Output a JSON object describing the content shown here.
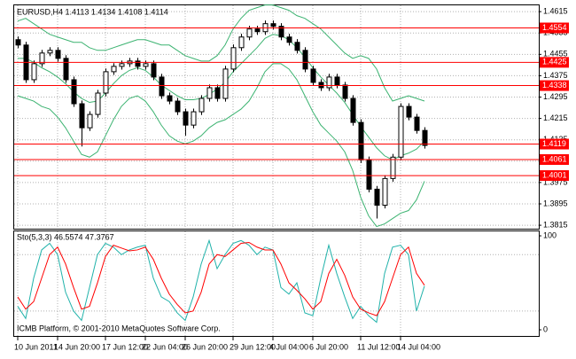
{
  "chart_data": [
    {
      "type": "candlestick",
      "title": "EURUSD,H4  1.4113 1.4134 1.4108 1.4114",
      "categories": [
        "10 Jun 2011",
        null,
        null,
        null,
        null,
        "14 Jun 20:00",
        null,
        null,
        null,
        null,
        null,
        "17 Jun 12:00",
        null,
        null,
        null,
        null,
        "22 Jun 04:00",
        null,
        null,
        null,
        null,
        "26 Jun 20:00",
        null,
        null,
        null,
        null,
        null,
        "29 Jun 12:00",
        null,
        null,
        null,
        null,
        "4 Jul 04:00",
        null,
        null,
        null,
        null,
        "6 Jul 20:00",
        null,
        null,
        null,
        null,
        null,
        "11 Jul 12:00",
        null,
        null,
        null,
        null,
        "14 Jul 04:00",
        null,
        null,
        null
      ],
      "open": [
        1.451,
        1.449,
        1.436,
        1.442,
        1.446,
        1.447,
        1.444,
        1.436,
        1.427,
        1.418,
        1.423,
        1.431,
        1.439,
        1.441,
        1.442,
        1.443,
        1.441,
        1.442,
        1.437,
        1.43,
        1.428,
        1.424,
        1.419,
        1.424,
        1.429,
        1.433,
        1.429,
        1.44,
        1.448,
        1.452,
        1.455,
        1.454,
        1.457,
        1.456,
        1.452,
        1.45,
        1.447,
        1.44,
        1.435,
        1.433,
        1.437,
        1.434,
        1.429,
        1.42,
        1.406,
        1.395,
        1.389,
        1.399,
        1.407,
        1.426,
        1.422,
        1.417
      ],
      "high": [
        1.4522,
        1.4502,
        1.4432,
        1.4472,
        1.4482,
        1.4482,
        1.4452,
        1.4372,
        1.4282,
        1.4242,
        1.4322,
        1.4402,
        1.4422,
        1.4432,
        1.4442,
        1.4442,
        1.4432,
        1.4432,
        1.4382,
        1.4312,
        1.4292,
        1.4252,
        1.4252,
        1.4302,
        1.4342,
        1.4342,
        1.4412,
        1.4492,
        1.4532,
        1.4562,
        1.4562,
        1.4582,
        1.4582,
        1.4572,
        1.4532,
        1.4512,
        1.4482,
        1.4412,
        1.4362,
        1.4382,
        1.4382,
        1.4352,
        1.4302,
        1.4212,
        1.4072,
        1.3962,
        1.4002,
        1.4082,
        1.4272,
        1.4272,
        1.4232,
        1.4182
      ],
      "low": [
        1.4478,
        1.4348,
        1.4348,
        1.4408,
        1.4448,
        1.4428,
        1.4348,
        1.4258,
        1.411,
        1.4168,
        1.4218,
        1.4298,
        1.4378,
        1.4398,
        1.4408,
        1.4398,
        1.4398,
        1.4358,
        1.4288,
        1.4268,
        1.4228,
        1.415,
        1.4178,
        1.4228,
        1.4278,
        1.4278,
        1.4278,
        1.4388,
        1.4468,
        1.4508,
        1.4528,
        1.4528,
        1.4548,
        1.4508,
        1.4488,
        1.4458,
        1.4388,
        1.4338,
        1.4318,
        1.4318,
        1.4328,
        1.4278,
        1.4188,
        1.4048,
        1.3938,
        1.384,
        1.3878,
        1.3978,
        1.4058,
        1.4208,
        1.4158,
        1.4102
      ],
      "close": [
        1.449,
        1.436,
        1.442,
        1.446,
        1.447,
        1.444,
        1.436,
        1.427,
        1.418,
        1.423,
        1.431,
        1.439,
        1.441,
        1.442,
        1.443,
        1.441,
        1.442,
        1.437,
        1.43,
        1.428,
        1.424,
        1.419,
        1.424,
        1.429,
        1.433,
        1.429,
        1.44,
        1.448,
        1.452,
        1.455,
        1.454,
        1.457,
        1.456,
        1.452,
        1.45,
        1.447,
        1.44,
        1.435,
        1.433,
        1.437,
        1.434,
        1.429,
        1.42,
        1.406,
        1.395,
        1.389,
        1.399,
        1.407,
        1.426,
        1.422,
        1.417,
        1.4114
      ],
      "up_color": "#ffffff",
      "down_color": "#000000",
      "bands": [
        {
          "color": "#3cb371",
          "values": [
            1.458,
            1.459,
            1.457,
            1.455,
            1.453,
            1.452,
            1.451,
            1.45,
            1.45,
            1.448,
            1.447,
            1.447,
            1.448,
            1.449,
            1.45,
            1.451,
            1.451,
            1.45,
            1.449,
            1.449,
            1.447,
            1.445,
            1.444,
            1.443,
            1.443,
            1.445,
            1.449,
            1.455,
            1.459,
            1.462,
            1.463,
            1.464,
            1.464,
            1.463,
            1.462,
            1.46,
            1.459,
            1.457,
            1.455,
            1.452,
            1.449,
            1.446,
            1.444,
            1.445,
            1.444,
            1.44,
            1.433,
            1.428,
            1.429,
            1.43,
            1.429,
            1.428
          ]
        },
        {
          "color": "#3cb371",
          "values": [
            1.444,
            1.444,
            1.4425,
            1.4405,
            1.439,
            1.437,
            1.4345,
            1.4315,
            1.429,
            1.4275,
            1.428,
            1.431,
            1.4345,
            1.4375,
            1.4395,
            1.4405,
            1.4395,
            1.437,
            1.434,
            1.432,
            1.43,
            1.4285,
            1.4285,
            1.429,
            1.4305,
            1.4325,
            1.435,
            1.439,
            1.442,
            1.445,
            1.448,
            1.4515,
            1.453,
            1.4525,
            1.451,
            1.448,
            1.4445,
            1.4405,
            1.437,
            1.434,
            1.431,
            1.4275,
            1.423,
            1.4185,
            1.4145,
            1.4105,
            1.4075,
            1.406,
            1.4075,
            1.4085,
            1.41,
            1.413
          ]
        },
        {
          "color": "#3cb371",
          "values": [
            1.43,
            1.429,
            1.428,
            1.426,
            1.425,
            1.422,
            1.418,
            1.413,
            1.408,
            1.407,
            1.409,
            1.415,
            1.421,
            1.426,
            1.429,
            1.43,
            1.428,
            1.424,
            1.419,
            1.415,
            1.413,
            1.412,
            1.413,
            1.415,
            1.418,
            1.42,
            1.421,
            1.423,
            1.425,
            1.428,
            1.433,
            1.439,
            1.442,
            1.442,
            1.44,
            1.436,
            1.43,
            1.424,
            1.419,
            1.416,
            1.413,
            1.409,
            1.402,
            1.392,
            1.385,
            1.381,
            1.382,
            1.384,
            1.386,
            1.387,
            1.391,
            1.398
          ]
        }
      ],
      "levels": {
        "color": "#ff0000",
        "values": [
          1.4554,
          1.4425,
          1.4338,
          1.4119,
          1.4061,
          1.4001
        ]
      },
      "ylim": [
        1.3802,
        1.4642
      ],
      "yticks": [
        1.3815,
        1.3895,
        1.3975,
        1.4055,
        1.4135,
        1.4215,
        1.4295,
        1.4375,
        1.4455,
        1.4535,
        1.4615
      ],
      "grid": true
    },
    {
      "type": "line",
      "title": "Sto(5,3,3) 46.5574 47.3767",
      "series": [
        {
          "color": "#20b2aa",
          "values": [
            25,
            12,
            55,
            85,
            92,
            80,
            40,
            20,
            10,
            45,
            80,
            92,
            88,
            80,
            85,
            88,
            90,
            55,
            35,
            30,
            18,
            10,
            35,
            70,
            95,
            65,
            80,
            92,
            95,
            90,
            80,
            88,
            85,
            45,
            38,
            50,
            18,
            15,
            55,
            90,
            60,
            35,
            12,
            25,
            15,
            8,
            60,
            88,
            90,
            80,
            20,
            46.5574
          ]
        },
        {
          "color": "#ff0000",
          "values": [
            35,
            22,
            30,
            55,
            80,
            88,
            70,
            45,
            22,
            25,
            50,
            78,
            90,
            87,
            84,
            85,
            88,
            75,
            55,
            38,
            27,
            18,
            20,
            40,
            70,
            80,
            78,
            85,
            92,
            93,
            88,
            85,
            85,
            70,
            50,
            42,
            33,
            22,
            30,
            60,
            75,
            58,
            35,
            22,
            18,
            15,
            30,
            55,
            80,
            88,
            60,
            47.3767
          ]
        }
      ],
      "levels": [
        80,
        20
      ],
      "ylim": [
        -7.5,
        105.7
      ],
      "yticks": [
        0,
        100
      ],
      "grid": true
    }
  ],
  "footer": "ICMB Platform, © 2001-2010 MetaQuotes Software Corp."
}
